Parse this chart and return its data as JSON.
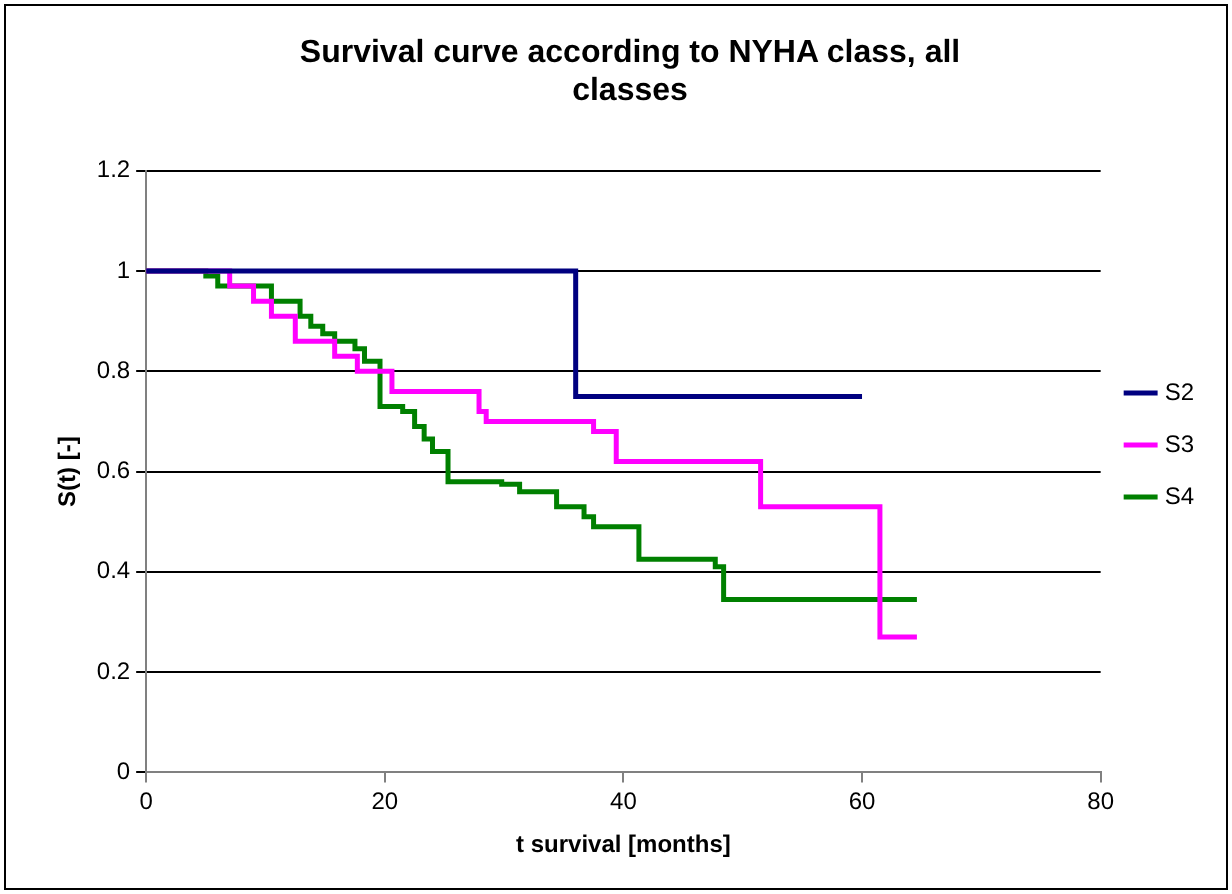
{
  "chart_data": {
    "type": "step",
    "title": "Survival curve according to NYHA class, all classes",
    "xlabel": "t survival [months]",
    "ylabel": "S(t) [-]",
    "xlim": [
      0,
      80
    ],
    "xticks": [
      0,
      20,
      40,
      60,
      80
    ],
    "ylim": [
      0,
      1.2
    ],
    "yticks": [
      0,
      0.2,
      0.4,
      0.6,
      0.8,
      1,
      1.2
    ],
    "grid": "y",
    "legend": "right",
    "marker": "none",
    "series": [
      {
        "name": "S2",
        "color": "#000080",
        "x": [
          0,
          36,
          60
        ],
        "values": [
          1,
          0.75,
          0.75
        ]
      },
      {
        "name": "S3",
        "color": "#ff00ff",
        "x": [
          0,
          7,
          9,
          10.5,
          12.5,
          15.8,
          17.7,
          20.6,
          27.9,
          28.5,
          37.5,
          39.4,
          51.5,
          61.5,
          64.6
        ],
        "values": [
          1,
          0.97,
          0.94,
          0.91,
          0.86,
          0.83,
          0.8,
          0.76,
          0.72,
          0.7,
          0.68,
          0.62,
          0.53,
          0.27,
          0.27
        ]
      },
      {
        "name": "S4",
        "color": "#008000",
        "x": [
          0,
          5,
          6,
          10.5,
          12.9,
          13.8,
          14.8,
          15.8,
          17.5,
          18.3,
          19.6,
          21.5,
          22.5,
          23.3,
          24,
          25.3,
          29.8,
          31.3,
          34.4,
          36.7,
          37.5,
          41.3,
          47.7,
          48.4,
          64.6
        ],
        "values": [
          1,
          0.99,
          0.97,
          0.94,
          0.91,
          0.89,
          0.875,
          0.86,
          0.845,
          0.82,
          0.73,
          0.72,
          0.69,
          0.665,
          0.64,
          0.58,
          0.575,
          0.56,
          0.53,
          0.51,
          0.49,
          0.425,
          0.41,
          0.345,
          0.345
        ]
      }
    ]
  }
}
